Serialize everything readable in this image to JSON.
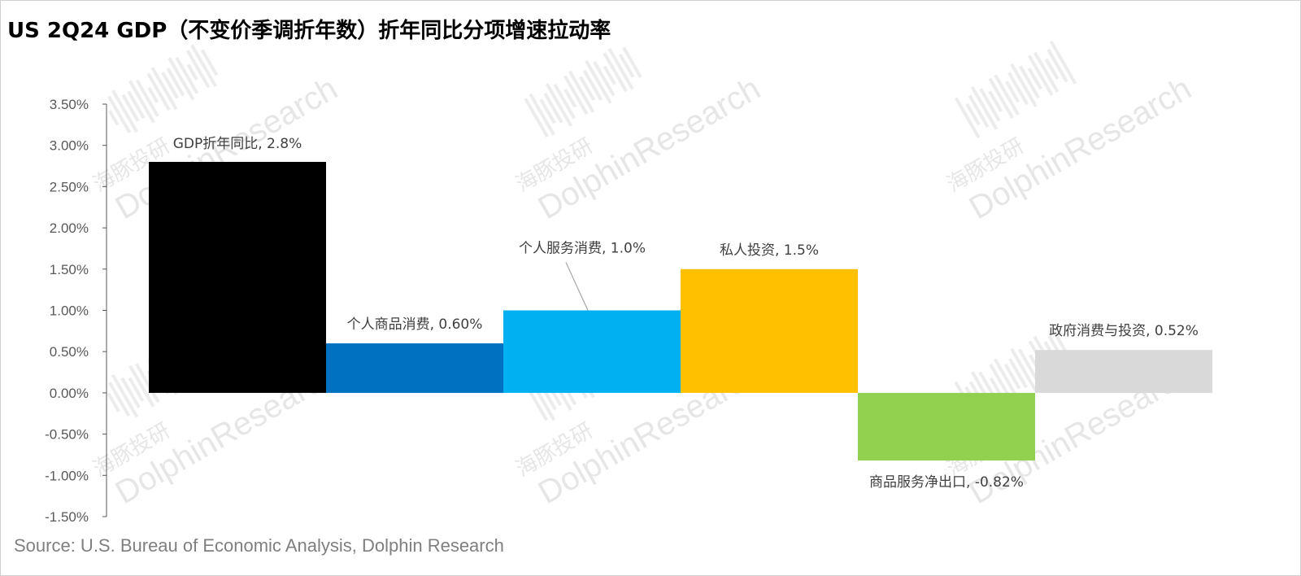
{
  "title": "US 2Q24 GDP（不变价季调折年数）折年同比分项增速拉动率",
  "source": "Source: U.S. Bureau of Economic Analysis, Dolphin Research",
  "watermark": {
    "cn": "海豚投研",
    "en": "DolphinResearch"
  },
  "chart_data": {
    "type": "bar",
    "title": "US 2Q24 GDP（不变价季调折年数）折年同比分项增速拉动率",
    "categories": [
      "GDP折年同比",
      "个人商品消费",
      "个人服务消费",
      "私人投资",
      "商品服务净出口",
      "政府消费与投资"
    ],
    "values": [
      2.8,
      0.6,
      1.0,
      1.5,
      -0.82,
      0.52
    ],
    "data_labels": [
      "GDP折年同比, 2.8%",
      "个人商品消费, 0.60%",
      "个人服务消费, 1.0%",
      "私人投资, 1.5%",
      "商品服务净出口, -0.82%",
      "政府消费与投资, 0.52%"
    ],
    "colors": [
      "#000000",
      "#0070c0",
      "#00b0f0",
      "#ffc000",
      "#92d050",
      "#d9d9d9"
    ],
    "ylim": [
      -1.5,
      3.5
    ],
    "yticks": [
      3.5,
      3.0,
      2.5,
      2.0,
      1.5,
      1.0,
      0.5,
      0.0,
      -0.5,
      -1.0,
      -1.5
    ],
    "ytick_labels": [
      "3.50%",
      "3.00%",
      "2.50%",
      "2.00%",
      "1.50%",
      "1.00%",
      "0.50%",
      "0.00%",
      "-0.50%",
      "-1.00%",
      "-1.50%"
    ],
    "xlabel": "",
    "ylabel": "",
    "grid": false,
    "legend": "none"
  }
}
